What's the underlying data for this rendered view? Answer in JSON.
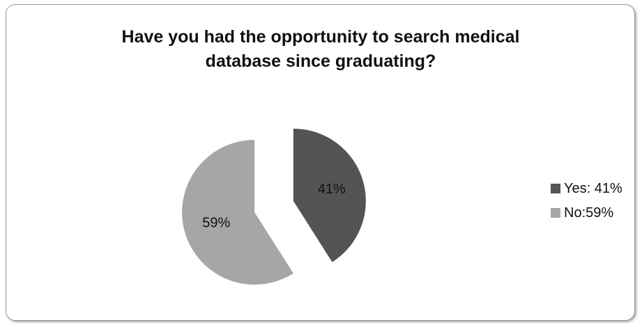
{
  "chart_data": {
    "type": "pie",
    "title": "Have you had the opportunity to search medical database since graduating?",
    "categories": [
      "Yes",
      "No"
    ],
    "values": [
      41,
      59
    ],
    "data_labels": [
      "41%",
      "59%"
    ],
    "legend": {
      "position": "right",
      "entries": [
        "Yes: 41%",
        "No:59%"
      ]
    },
    "colors": [
      "#545454",
      "#a6a6a6"
    ],
    "exploded": true
  }
}
